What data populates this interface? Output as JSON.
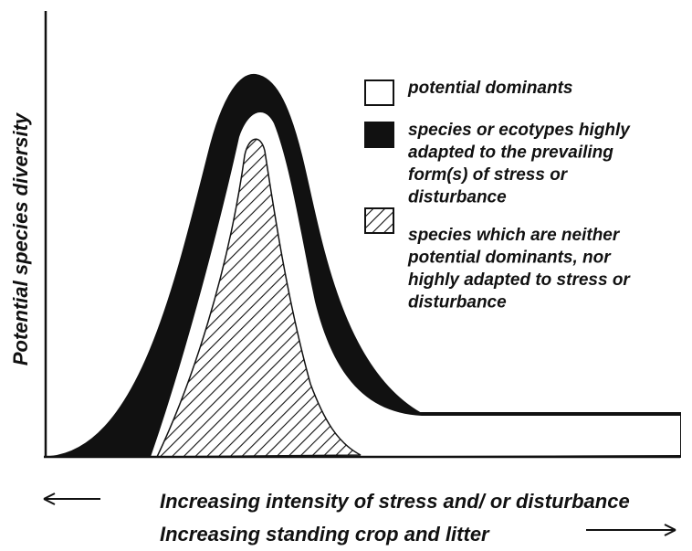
{
  "y_axis_label": "Potential species diversity",
  "legend": [
    {
      "lines": [
        "potential dominants"
      ]
    },
    {
      "lines": [
        "species or ecotypes highly",
        "adapted to the prevailing",
        "form(s) of stress or",
        "disturbance"
      ]
    },
    {
      "lines": [
        "species which are neither",
        "potential dominants, nor",
        "highly adapted to stress or",
        "disturbance"
      ]
    }
  ],
  "x_axis_captions": [
    "Increasing intensity of stress and/ or disturbance",
    "Increasing standing crop and litter"
  ]
}
